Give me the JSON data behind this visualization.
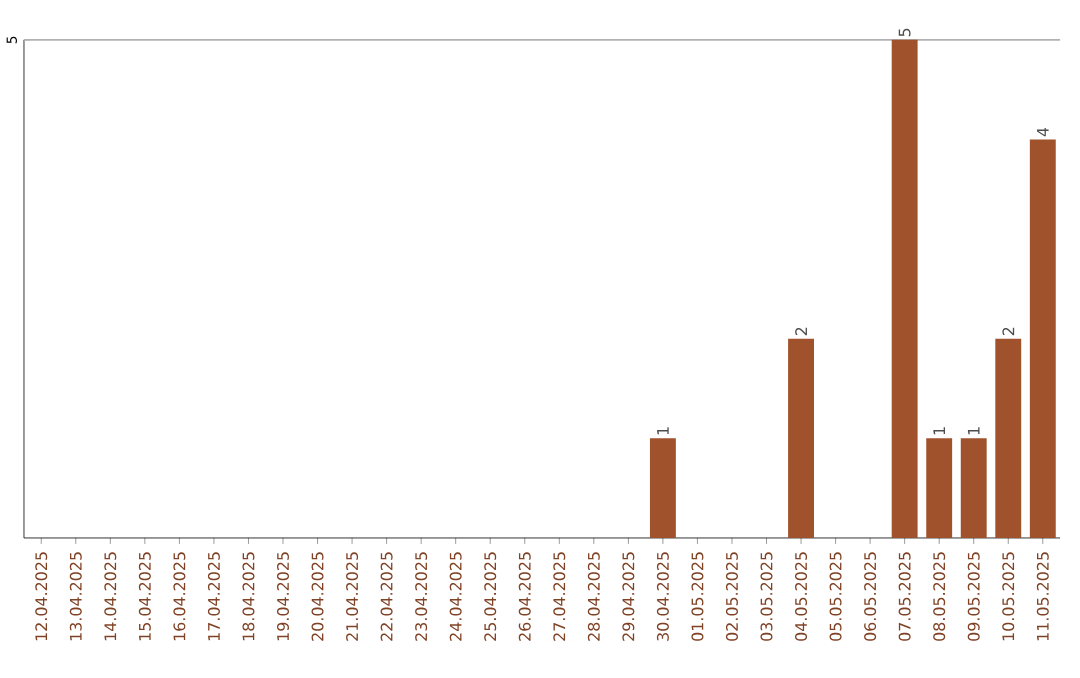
{
  "chart_data": {
    "type": "bar",
    "categories": [
      "12.04.2025",
      "13.04.2025",
      "14.04.2025",
      "15.04.2025",
      "16.04.2025",
      "17.04.2025",
      "18.04.2025",
      "19.04.2025",
      "20.04.2025",
      "21.04.2025",
      "22.04.2025",
      "23.04.2025",
      "24.04.2025",
      "25.04.2025",
      "26.04.2025",
      "27.04.2025",
      "28.04.2025",
      "29.04.2025",
      "30.04.2025",
      "01.05.2025",
      "02.05.2025",
      "03.05.2025",
      "04.05.2025",
      "05.05.2025",
      "06.05.2025",
      "07.05.2025",
      "08.05.2025",
      "09.05.2025",
      "10.05.2025",
      "11.05.2025"
    ],
    "values": [
      null,
      null,
      null,
      null,
      null,
      null,
      null,
      null,
      null,
      null,
      null,
      null,
      null,
      null,
      null,
      null,
      null,
      null,
      1,
      null,
      null,
      null,
      2,
      null,
      null,
      5,
      1,
      1,
      2,
      4
    ],
    "data_labels": true,
    "color": "#a0522d",
    "ylim": [
      0,
      5
    ],
    "yticks": [
      5
    ]
  }
}
